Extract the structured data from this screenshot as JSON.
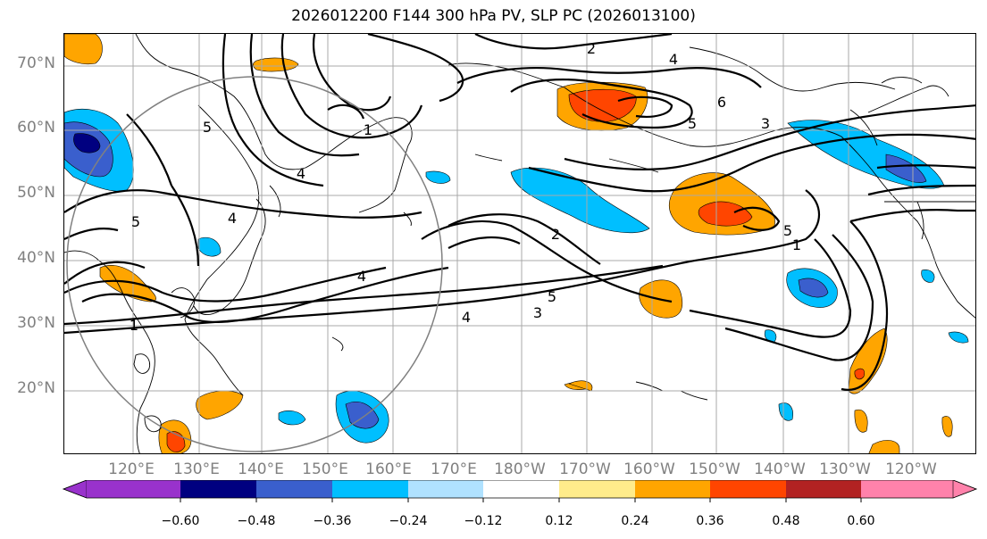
{
  "title": "2026012200 F144 300 hPa PV, SLP PC (2026013100)",
  "latitude_labels": [
    "70°N",
    "60°N",
    "50°N",
    "40°N",
    "30°N",
    "20°N"
  ],
  "longitude_labels": [
    "120°E",
    "130°E",
    "140°E",
    "150°E",
    "160°E",
    "170°E",
    "180°W",
    "170°W",
    "160°W",
    "150°W",
    "140°W",
    "130°W",
    "120°W"
  ],
  "colorbar": {
    "tick_labels": [
      "−0.60",
      "−0.48",
      "−0.36",
      "−0.24",
      "−0.12",
      "0.12",
      "0.24",
      "0.36",
      "0.48",
      "0.60"
    ],
    "colors": [
      "#9932cc",
      "#000080",
      "#3a5fcd",
      "#00bfff",
      "#b0e2ff",
      "#ffffff",
      "#ffec8b",
      "#ffa500",
      "#ff4500",
      "#b22222",
      "#ff82ab"
    ]
  },
  "contour_labels": [
    "2",
    "4",
    "6",
    "5",
    "3",
    "1",
    "5",
    "4",
    "5",
    "4",
    "1",
    "2",
    "4",
    "5",
    "4",
    "3",
    "1",
    "5"
  ],
  "colors": {
    "grid": "#a9a9a9",
    "contour": "#000000",
    "coast": "#000000",
    "circle": "#808080"
  }
}
